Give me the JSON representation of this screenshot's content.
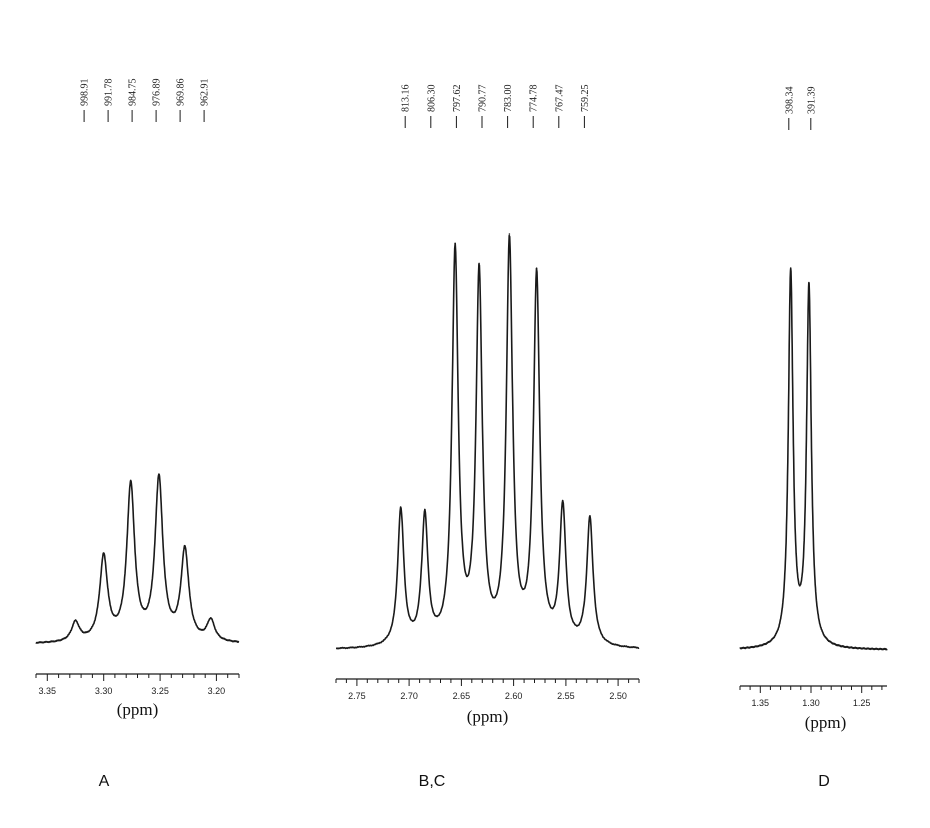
{
  "chart_data": [
    {
      "type": "line",
      "title": "",
      "panel_label": "A",
      "xlabel": "(ppm)",
      "xlim": [
        3.36,
        3.18
      ],
      "x_reversed": true,
      "grid": false,
      "x_ticks": [
        3.35,
        3.3,
        3.25,
        3.2
      ],
      "x_tick_labels": [
        "3.35",
        "3.30",
        "3.25",
        "3.20"
      ],
      "x_minor_step": 0.01,
      "peak_labels": [
        "998.91",
        "991.78",
        "984.75",
        "976.89",
        "969.86",
        "962.91"
      ],
      "peaks": [
        {
          "ppm": 3.325,
          "height": 0.12
        },
        {
          "ppm": 3.3,
          "height": 0.52
        },
        {
          "ppm": 3.276,
          "height": 0.96
        },
        {
          "ppm": 3.251,
          "height": 1.0
        },
        {
          "ppm": 3.228,
          "height": 0.56
        },
        {
          "ppm": 3.205,
          "height": 0.13
        }
      ],
      "peak_width_ppm": 0.0042
    },
    {
      "type": "line",
      "title": "",
      "panel_label": "B,C",
      "xlabel": "(ppm)",
      "xlim": [
        2.77,
        2.48
      ],
      "x_reversed": true,
      "grid": false,
      "x_ticks": [
        2.75,
        2.7,
        2.65,
        2.6,
        2.55,
        2.5
      ],
      "x_tick_labels": [
        "2.75",
        "2.70",
        "2.65",
        "2.60",
        "2.55",
        "2.50"
      ],
      "x_minor_step": 0.01,
      "peak_labels": [
        "813.16",
        "806.30",
        "797.62",
        "790.77",
        "783.00",
        "774.78",
        "767.47",
        "759.25"
      ],
      "peaks": [
        {
          "ppm": 2.708,
          "height": 0.34
        },
        {
          "ppm": 2.685,
          "height": 0.32
        },
        {
          "ppm": 2.656,
          "height": 0.98
        },
        {
          "ppm": 2.633,
          "height": 0.92
        },
        {
          "ppm": 2.604,
          "height": 1.0
        },
        {
          "ppm": 2.578,
          "height": 0.92
        },
        {
          "ppm": 2.553,
          "height": 0.34
        },
        {
          "ppm": 2.527,
          "height": 0.32
        }
      ],
      "peak_width_ppm": 0.0036
    },
    {
      "type": "line",
      "title": "",
      "panel_label": "D",
      "xlabel": "(ppm)",
      "xlim": [
        1.37,
        1.225
      ],
      "x_reversed": true,
      "grid": false,
      "x_ticks": [
        1.35,
        1.3,
        1.25
      ],
      "x_tick_labels": [
        "1.35",
        "1.30",
        "1.25"
      ],
      "x_minor_step": 0.01,
      "peak_labels": [
        "398.34",
        "391.39"
      ],
      "peaks": [
        {
          "ppm": 1.32,
          "height": 1.0
        },
        {
          "ppm": 1.302,
          "height": 0.96
        }
      ],
      "peak_width_ppm": 0.0028
    }
  ]
}
